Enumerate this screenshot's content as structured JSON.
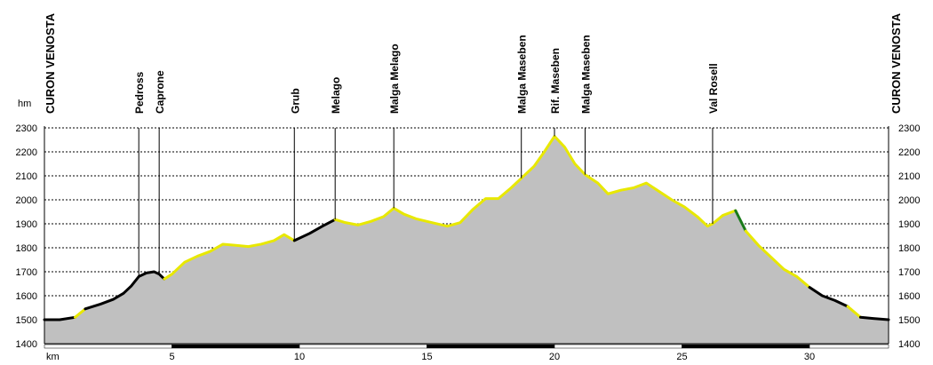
{
  "chart_data": {
    "type": "area",
    "title": "",
    "y_unit": "hm",
    "x_unit": "km",
    "xlim": [
      0,
      33.1
    ],
    "ylim": [
      1400,
      2300
    ],
    "yticks": [
      1400,
      1500,
      1600,
      1700,
      1800,
      1900,
      2000,
      2100,
      2200,
      2300
    ],
    "xticks": [
      5,
      10,
      15,
      20,
      25,
      30
    ],
    "grid": true,
    "endpoints": {
      "left": "CURON VENOSTA",
      "right": "CURON VENOSTA"
    },
    "waypoints": [
      {
        "name": "Pedross",
        "km": 3.7
      },
      {
        "name": "Caprone",
        "km": 4.5
      },
      {
        "name": "Grub",
        "km": 9.8
      },
      {
        "name": "Melago",
        "km": 11.4
      },
      {
        "name": "Malga Melago",
        "km": 13.7
      },
      {
        "name": "Malga Maseben",
        "km": 18.7
      },
      {
        "name": "Rif. Maseben",
        "km": 20.0
      },
      {
        "name": "Malga Maseben",
        "km": 21.2
      },
      {
        "name": "Val Rosell",
        "km": 26.2
      }
    ],
    "series": [
      {
        "values": [
          [
            0,
            1500
          ],
          [
            0.6,
            1500
          ],
          [
            1.2,
            1510
          ],
          [
            1.6,
            1545
          ],
          [
            2.2,
            1565
          ],
          [
            2.7,
            1585
          ],
          [
            3.1,
            1610
          ],
          [
            3.4,
            1640
          ],
          [
            3.7,
            1680
          ],
          [
            4.0,
            1695
          ],
          [
            4.3,
            1700
          ],
          [
            4.5,
            1690
          ],
          [
            4.7,
            1670
          ],
          [
            5.0,
            1690
          ],
          [
            5.5,
            1740
          ],
          [
            6.0,
            1765
          ],
          [
            6.5,
            1785
          ],
          [
            7.0,
            1815
          ],
          [
            7.5,
            1810
          ],
          [
            8.0,
            1805
          ],
          [
            8.5,
            1815
          ],
          [
            9.0,
            1830
          ],
          [
            9.4,
            1855
          ],
          [
            9.8,
            1830
          ],
          [
            10.4,
            1860
          ],
          [
            10.9,
            1890
          ],
          [
            11.4,
            1918
          ],
          [
            11.8,
            1905
          ],
          [
            12.3,
            1895
          ],
          [
            12.8,
            1910
          ],
          [
            13.3,
            1930
          ],
          [
            13.7,
            1965
          ],
          [
            14.1,
            1940
          ],
          [
            14.6,
            1920
          ],
          [
            15.2,
            1905
          ],
          [
            15.8,
            1890
          ],
          [
            16.3,
            1905
          ],
          [
            16.8,
            1960
          ],
          [
            17.3,
            2005
          ],
          [
            17.8,
            2005
          ],
          [
            18.3,
            2050
          ],
          [
            18.7,
            2090
          ],
          [
            19.2,
            2140
          ],
          [
            19.6,
            2200
          ],
          [
            20.0,
            2265
          ],
          [
            20.4,
            2220
          ],
          [
            20.8,
            2150
          ],
          [
            21.2,
            2105
          ],
          [
            21.7,
            2070
          ],
          [
            22.1,
            2025
          ],
          [
            22.6,
            2040
          ],
          [
            23.1,
            2050
          ],
          [
            23.6,
            2070
          ],
          [
            24.1,
            2035
          ],
          [
            24.6,
            2000
          ],
          [
            25.1,
            1970
          ],
          [
            25.6,
            1930
          ],
          [
            26.0,
            1890
          ],
          [
            26.2,
            1900
          ],
          [
            26.6,
            1935
          ],
          [
            27.1,
            1955
          ],
          [
            27.5,
            1870
          ],
          [
            28.0,
            1810
          ],
          [
            28.5,
            1760
          ],
          [
            29.0,
            1710
          ],
          [
            29.5,
            1680
          ],
          [
            30.0,
            1635
          ],
          [
            30.5,
            1600
          ],
          [
            31.0,
            1580
          ],
          [
            31.5,
            1555
          ],
          [
            32.0,
            1510
          ],
          [
            32.5,
            1505
          ],
          [
            33.1,
            1500
          ]
        ]
      }
    ],
    "segments": [
      {
        "from_km": 0,
        "to_km": 1.2,
        "color": "#000000"
      },
      {
        "from_km": 1.2,
        "to_km": 1.6,
        "color": "#e8e800"
      },
      {
        "from_km": 1.6,
        "to_km": 4.7,
        "color": "#000000"
      },
      {
        "from_km": 4.7,
        "to_km": 9.8,
        "color": "#e8e800"
      },
      {
        "from_km": 9.8,
        "to_km": 11.4,
        "color": "#000000"
      },
      {
        "from_km": 11.4,
        "to_km": 27.1,
        "color": "#e8e800"
      },
      {
        "from_km": 27.1,
        "to_km": 27.5,
        "color": "#1a7a1a"
      },
      {
        "from_km": 27.5,
        "to_km": 30.0,
        "color": "#e8e800"
      },
      {
        "from_km": 30.0,
        "to_km": 31.5,
        "color": "#000000"
      },
      {
        "from_km": 31.5,
        "to_km": 32.0,
        "color": "#e8e800"
      },
      {
        "from_km": 32.0,
        "to_km": 33.1,
        "color": "#000000"
      }
    ],
    "colors": {
      "fill": "#c0c0c0",
      "grid": "#000000",
      "axis": "#000000"
    }
  }
}
